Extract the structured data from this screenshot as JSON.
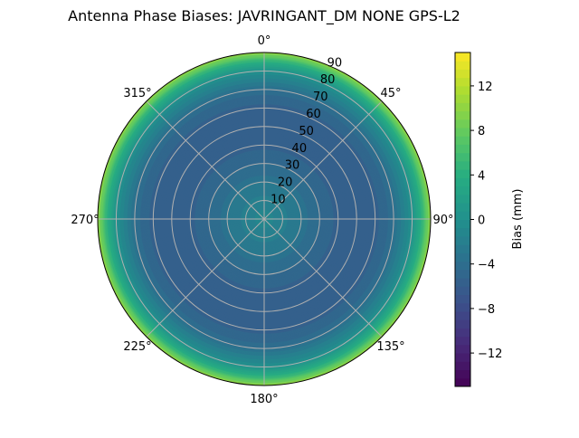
{
  "chart_data": {
    "type": "heatmap",
    "projection": "polar",
    "title": "Antenna Phase Biases: JAVRINGANT_DM   NONE GPS-L2",
    "theta_direction": "clockwise",
    "theta_zero": "north",
    "theta_tick_labels": [
      "0°",
      "45°",
      "90°",
      "135°",
      "180°",
      "225°",
      "270°",
      "315°"
    ],
    "theta_ticks": [
      0,
      45,
      90,
      135,
      180,
      225,
      270,
      315
    ],
    "r_ticks": [
      10,
      20,
      30,
      40,
      50,
      60,
      70,
      80,
      90
    ],
    "r_tick_labels": [
      "10",
      "20",
      "30",
      "40",
      "50",
      "60",
      "70",
      "80",
      "90"
    ],
    "rlim": [
      0,
      90
    ],
    "grid": true,
    "radial_profile": {
      "zenith_angle_deg": [
        0,
        5,
        10,
        15,
        20,
        25,
        30,
        35,
        40,
        45,
        50,
        55,
        60,
        65,
        70,
        75,
        80,
        85,
        90
      ],
      "bias_mm": [
        -1,
        -1.5,
        -2,
        -2.5,
        -3,
        -4,
        -4.5,
        -5,
        -5.5,
        -6,
        -6,
        -6,
        -5.5,
        -5,
        -4,
        -2,
        0,
        4,
        10
      ]
    },
    "colorbar": {
      "label": "Bias (mm)",
      "colormap": "viridis",
      "range": [
        -15,
        15
      ],
      "levels": 40,
      "ticks": [
        -12,
        -8,
        -4,
        0,
        4,
        8,
        12
      ],
      "tick_labels": [
        "−12",
        "−8",
        "−4",
        "0",
        "4",
        "8",
        "12"
      ]
    }
  }
}
